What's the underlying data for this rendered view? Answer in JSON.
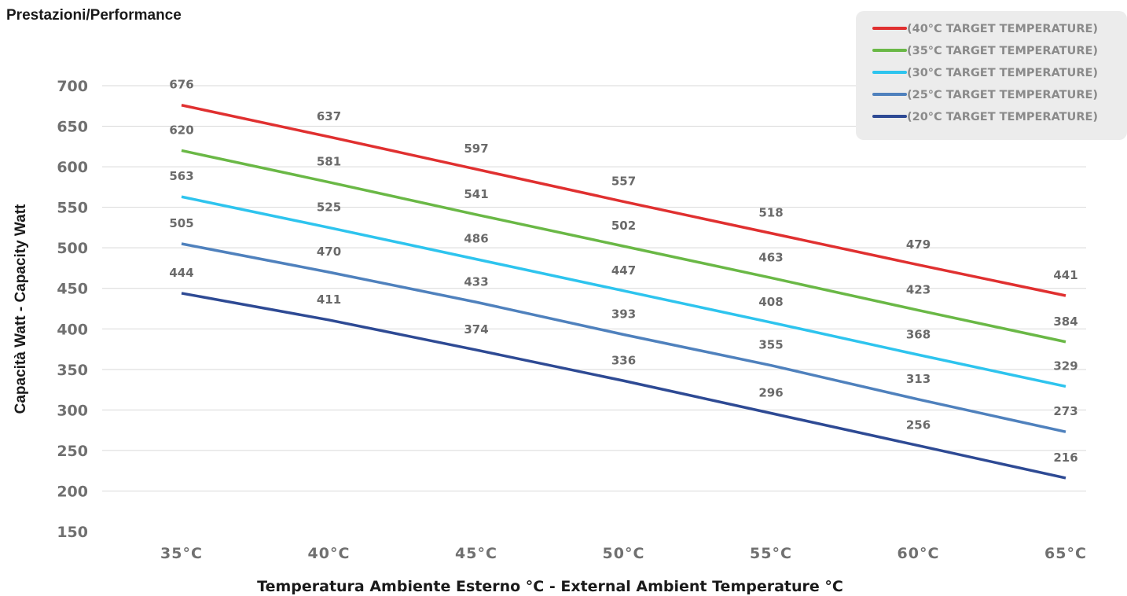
{
  "chart_data": {
    "type": "line",
    "title": "Prestazioni/Performance",
    "xlabel": "Temperatura Ambiente Esterno °C - External Ambient Temperature °C",
    "ylabel": "Capacità Watt - Capacity Watt",
    "categories": [
      "35°C",
      "40°C",
      "45°C",
      "50°C",
      "55°C",
      "60°C",
      "65°C"
    ],
    "ylim": [
      150,
      700
    ],
    "yticks": [
      150,
      200,
      250,
      300,
      350,
      400,
      450,
      500,
      550,
      600,
      650,
      700
    ],
    "grid": true,
    "legend_position": "top-right",
    "series": [
      {
        "name": "(40°C TARGET TEMPERATURE)",
        "color": "#e03030",
        "values": [
          676,
          637,
          597,
          557,
          518,
          479,
          441
        ]
      },
      {
        "name": "(35°C TARGET TEMPERATURE)",
        "color": "#6ab846",
        "values": [
          620,
          581,
          541,
          502,
          463,
          423,
          384
        ]
      },
      {
        "name": "(30°C TARGET TEMPERATURE)",
        "color": "#2ec4ee",
        "values": [
          563,
          525,
          486,
          447,
          408,
          368,
          329
        ]
      },
      {
        "name": "(25°C TARGET TEMPERATURE)",
        "color": "#4f81bd",
        "values": [
          505,
          470,
          433,
          393,
          355,
          313,
          273
        ]
      },
      {
        "name": "(20°C TARGET TEMPERATURE)",
        "color": "#2e4a94",
        "values": [
          444,
          411,
          374,
          336,
          296,
          256,
          216
        ]
      }
    ]
  }
}
